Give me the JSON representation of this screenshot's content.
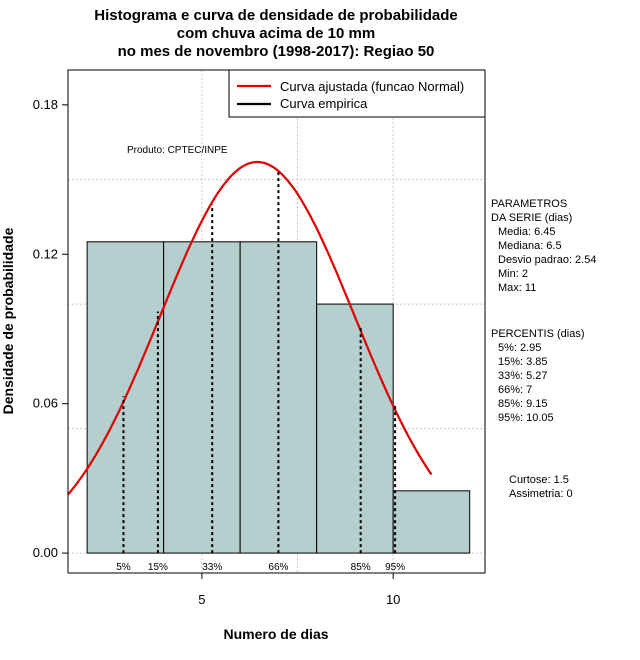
{
  "chart_data": {
    "type": "bar",
    "title_lines": [
      "Histograma e curva de densidade de probabilidade",
      "com chuva acima de 10 mm",
      "no mes de novembro (1998-2017): Regiao 50"
    ],
    "xlabel": "Numero de dias",
    "ylabel": "Densidade de probabilidade",
    "xlim": [
      1.5,
      12.4
    ],
    "ylim": [
      -0.008,
      0.194
    ],
    "x_ticks": [
      5,
      10
    ],
    "y_ticks": [
      0.0,
      0.06,
      0.12,
      0.18
    ],
    "y_tick_labels": [
      "0.00",
      "0.06",
      "0.12",
      "0.18"
    ],
    "grid": true,
    "bins": [
      {
        "start": 2,
        "end": 4,
        "density": 0.125
      },
      {
        "start": 4,
        "end": 6,
        "density": 0.125
      },
      {
        "start": 6,
        "end": 8,
        "density": 0.125
      },
      {
        "start": 8,
        "end": 10,
        "density": 0.1
      },
      {
        "start": 10,
        "end": 12,
        "density": 0.025
      }
    ],
    "bar_color": "#b5cece",
    "fitted_curve": {
      "name": "Curva ajustada (funcao Normal)",
      "color": "#e00000",
      "mean": 6.45,
      "sd": 2.54,
      "x_range": [
        1.5,
        11
      ]
    },
    "empirical_curve": {
      "name": "Curva empirica",
      "color": "#000000"
    },
    "legend_placement": "top-right",
    "percentile_lines": [
      {
        "label": "5%",
        "x": 2.95,
        "y": 0.063
      },
      {
        "label": "15%",
        "x": 3.85,
        "y": 0.097
      },
      {
        "label": "33%",
        "x": 5.27,
        "y": 0.14
      },
      {
        "label": "66%",
        "x": 7,
        "y": 0.153
      },
      {
        "label": "85%",
        "x": 9.15,
        "y": 0.091
      },
      {
        "label": "95%",
        "x": 10.05,
        "y": 0.06
      }
    ],
    "annotation": "Produto: CPTEC/INPE",
    "parameters": {
      "heading": [
        "PARAMETROS",
        "DA SERIE (dias)"
      ],
      "lines": [
        "Media: 6.45",
        "Mediana: 6.5",
        "Desvio padrao: 2.54",
        "Min: 2",
        "Max: 11"
      ]
    },
    "percentis": {
      "heading": "PERCENTIS (dias)",
      "lines": [
        "5%: 2.95",
        "15%: 3.85",
        "33%: 5.27",
        "66%: 7",
        "85%: 9.15",
        "95%: 10.05"
      ]
    },
    "shape": {
      "lines": [
        "Curtose: 1.5",
        "Assimetria: 0"
      ]
    }
  }
}
